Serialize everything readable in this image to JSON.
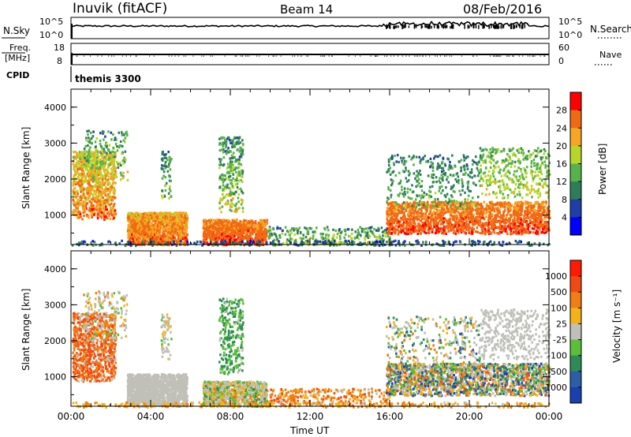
{
  "header": {
    "station": "Inuvik (fitACF)",
    "beam": "Beam 14",
    "date": "08/Feb/2016"
  },
  "colors": {
    "power_scale": [
      "#0000ff",
      "#1f3ea8",
      "#2e7d5a",
      "#58b24a",
      "#b8d62a",
      "#f5a623",
      "#f06a13",
      "#ff0000"
    ],
    "velocity_scale": [
      "#1a3fb0",
      "#2a5fa8",
      "#2e8b57",
      "#5bbf3a",
      "#c0c0b8",
      "#f2b21a",
      "#f07e12",
      "#f04a12",
      "#ff1a00"
    ],
    "ground_scatter": "#c0c0b8"
  },
  "chart_data": [
    {
      "type": "line",
      "name": "nsky-nsearch-panel",
      "left_label": "N.Sky",
      "right_label": "N.Search",
      "right_legend_style": "dotted",
      "left_ticks": [
        "10^5",
        "10^0"
      ],
      "right_ticks": [
        "10^5",
        "10^0"
      ],
      "x_ticks": [
        "00:00",
        "04:00",
        "08:00",
        "12:00",
        "16:00",
        "20:00",
        "00:00"
      ],
      "series": [
        {
          "values": [
            3,
            3.2,
            3.1,
            3.3,
            3.2,
            3.4,
            3.3,
            3.5,
            3.6,
            3.4,
            3.5,
            3.3
          ]
        },
        {
          "values": [
            3.1,
            3.0,
            3.2,
            3.1,
            3.3,
            3.2,
            3.4,
            3.3,
            3.6,
            3.5,
            3.7,
            3.2
          ]
        }
      ]
    },
    {
      "type": "line",
      "name": "freq-nave-panel",
      "left_label_line1": "Freq.",
      "left_label_line2": "[MHz]",
      "right_label": "Nave",
      "right_legend_style": "dotted",
      "left_ticks": [
        "18",
        "8"
      ],
      "right_ticks": [
        "60",
        "0"
      ],
      "series": [
        {
          "values": [
            11,
            11,
            11,
            11,
            11,
            11,
            11,
            11,
            11,
            11,
            11,
            11
          ]
        },
        {
          "values": [
            30,
            30,
            30,
            30,
            30,
            30,
            30,
            30,
            30,
            30,
            30,
            30
          ]
        }
      ]
    },
    {
      "type": "table",
      "name": "cpid-row",
      "label": "CPID",
      "value": "themis 3300"
    },
    {
      "type": "heatmap",
      "name": "power-panel",
      "ylabel": "Slant Range [km]",
      "ylim": [
        180,
        4500
      ],
      "yticks": [
        "4000",
        "3000",
        "2000",
        "1000"
      ],
      "xlim": [
        "00:00",
        "24:00"
      ],
      "colorbar_label": "Power [dB]",
      "colorbar_ticks": [
        "28",
        "24",
        "20",
        "16",
        "12",
        "8",
        "4"
      ],
      "clim": [
        0,
        32
      ]
    },
    {
      "type": "heatmap",
      "name": "velocity-panel",
      "ylabel": "Slant Range [km]",
      "ylim": [
        180,
        4500
      ],
      "yticks": [
        "4000",
        "3000",
        "2000",
        "1000"
      ],
      "xlim": [
        "00:00",
        "24:00"
      ],
      "xticks": [
        "00:00",
        "04:00",
        "08:00",
        "12:00",
        "16:00",
        "20:00",
        "00:00"
      ],
      "xlabel": "Time UT",
      "colorbar_label": "Velocity [m s⁻¹]",
      "colorbar_ticks": [
        "1000",
        "500",
        "100",
        "25",
        "-25",
        "-100",
        "-500",
        "-1000"
      ]
    }
  ]
}
